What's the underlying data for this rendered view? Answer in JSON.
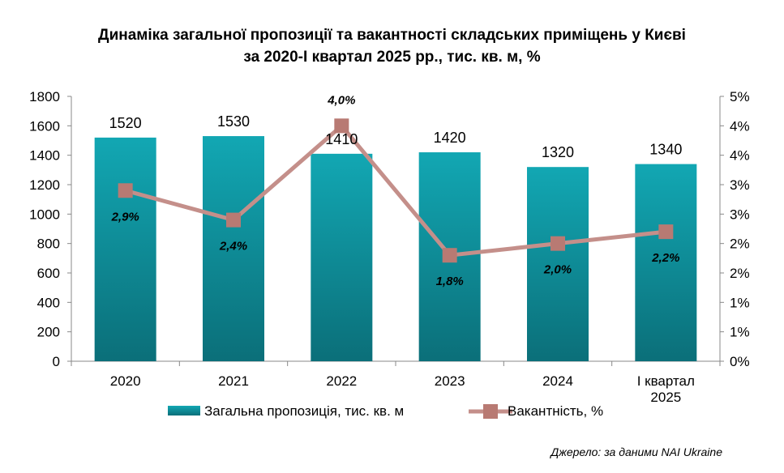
{
  "title_line1": "Динаміка загальної пропозиції та вакантності складських приміщень у Києві",
  "title_line2": "за 2020-І квартал 2025 рр., тис. кв. м, %",
  "source": "Джерело: за даними NAI Ukraine",
  "chart_data": {
    "type": "bar",
    "categories": [
      [
        "2020"
      ],
      [
        "2021"
      ],
      [
        "2022"
      ],
      [
        "2023"
      ],
      [
        "2024"
      ],
      [
        "І квартал",
        "2025"
      ]
    ],
    "series": [
      {
        "name": "Загальна пропозиція, тис. кв. м",
        "type": "bar",
        "axis": "left",
        "values": [
          1520,
          1530,
          1410,
          1420,
          1320,
          1340
        ],
        "labels": [
          "1520",
          "1530",
          "1410",
          "1420",
          "1320",
          "1340"
        ],
        "color": "#139aa5"
      },
      {
        "name": "Вакантність, %",
        "type": "line",
        "axis": "right",
        "values": [
          2.9,
          2.4,
          4.0,
          1.8,
          2.0,
          2.2
        ],
        "labels": [
          "2,9%",
          "2,4%",
          "4,0%",
          "1,8%",
          "2,0%",
          "2,2%"
        ],
        "color": "#c48f8a",
        "marker_color": "#b87a73"
      }
    ],
    "left_axis": {
      "min": 0,
      "max": 1800,
      "ticks": [
        0,
        200,
        400,
        600,
        800,
        1000,
        1200,
        1400,
        1600,
        1800
      ],
      "tick_labels": [
        "0",
        "200",
        "400",
        "600",
        "800",
        "1000",
        "1200",
        "1400",
        "1600",
        "1800"
      ]
    },
    "right_axis": {
      "min": 0,
      "max": 4.5,
      "ticks": [
        0,
        0.5,
        1,
        1.5,
        2,
        2.5,
        3,
        3.5,
        4,
        4.5
      ],
      "tick_labels": [
        "0%",
        "1%",
        "1%",
        "2%",
        "2%",
        "3%",
        "3%",
        "4%",
        "4%",
        "5%"
      ]
    },
    "grid": false,
    "legend": "bottom"
  }
}
